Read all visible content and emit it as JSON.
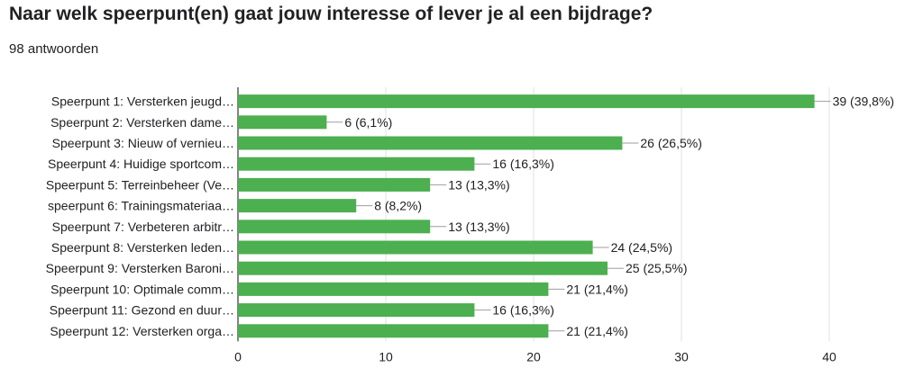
{
  "question": {
    "title": "Naar welk speerpunt(en) gaat jouw interesse of lever je al een bijdrage?",
    "response_count": "98 antwoorden"
  },
  "colors": {
    "bar": "#4caf50",
    "grid": "#e0e0e0",
    "axis": "#333333",
    "leader": "#9e9e9e"
  },
  "chart_data": {
    "type": "bar",
    "orientation": "horizontal",
    "categories": [
      "Speerpunt 1: Versterken jeugd…",
      "Speerpunt 2: Versterken dame…",
      "Speerpunt 3: Nieuw of vernieu…",
      "Speerpunt 4: Huidige sportcom…",
      "Speerpunt 5: Terreinbeheer (Ve…",
      "speerpunt 6: Trainingsmateriaa…",
      "Speerpunt 7: Verbeteren arbitr…",
      "Speerpunt 8: Versterken leden…",
      "Speerpunt 9: Versterken Baroni…",
      "Speerpunt 10: Optimale comm…",
      "Speerpunt 11: Gezond en duur…",
      "Speerpunt 12: Versterken orga…"
    ],
    "values": [
      39,
      6,
      26,
      16,
      13,
      8,
      13,
      24,
      25,
      21,
      16,
      21
    ],
    "data_labels": [
      "39 (39,8%)",
      "6 (6,1%)",
      "26 (26,5%)",
      "16 (16,3%)",
      "13 (13,3%)",
      "8 (8,2%)",
      "13 (13,3%)",
      "24 (24,5%)",
      "25 (25,5%)",
      "21 (21,4%)",
      "16 (16,3%)",
      "21 (21,4%)"
    ],
    "xlim": [
      0,
      40
    ],
    "xticks": [
      0,
      10,
      20,
      30,
      40
    ],
    "grid": true,
    "legend": "none"
  }
}
